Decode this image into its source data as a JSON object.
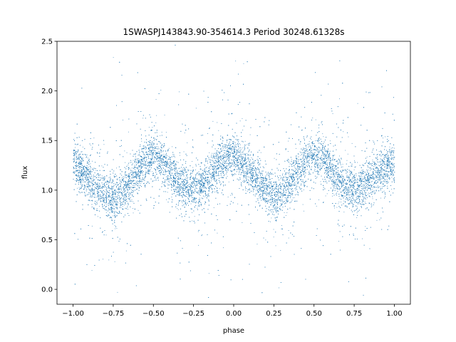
{
  "chart_data": {
    "type": "scatter",
    "title": "1SWASPJ143843.90-354614.3 Period 30248.61328s",
    "xlabel": "phase",
    "ylabel": "flux",
    "xlim": [
      -1.1,
      1.1
    ],
    "ylim": [
      -0.15,
      2.5
    ],
    "xticks": [
      -1.0,
      -0.75,
      -0.5,
      -0.25,
      0.0,
      0.25,
      0.5,
      0.75,
      1.0
    ],
    "xtick_labels": [
      "−1.00",
      "−0.75",
      "−0.50",
      "−0.25",
      "0.00",
      "0.25",
      "0.50",
      "0.75",
      "1.00"
    ],
    "yticks": [
      0.0,
      0.5,
      1.0,
      1.5,
      2.0,
      2.5
    ],
    "ytick_labels": [
      "0.0",
      "0.5",
      "1.0",
      "1.5",
      "2.0",
      "2.5"
    ],
    "grid": false,
    "point_color": "#1f77b4",
    "series": [
      {
        "x": [
          -1.0,
          -0.95,
          -0.9,
          -0.85,
          -0.8,
          -0.75,
          -0.7,
          -0.65,
          -0.6,
          -0.55,
          -0.5,
          -0.45,
          -0.4,
          -0.35,
          -0.3,
          -0.25,
          -0.2,
          -0.15,
          -0.1,
          -0.05,
          0.0,
          0.05,
          0.1,
          0.15,
          0.2,
          0.25,
          0.3,
          0.35,
          0.4,
          0.45,
          0.5,
          0.55,
          0.6,
          0.65,
          0.7,
          0.75,
          0.8,
          0.85,
          0.9,
          0.95,
          1.0
        ],
        "y": [
          1.28,
          1.2,
          1.12,
          1.02,
          0.95,
          0.92,
          0.97,
          1.08,
          1.2,
          1.3,
          1.33,
          1.3,
          1.2,
          1.1,
          1.02,
          1.0,
          1.05,
          1.15,
          1.25,
          1.32,
          1.33,
          1.28,
          1.18,
          1.08,
          1.0,
          0.95,
          0.98,
          1.08,
          1.2,
          1.3,
          1.35,
          1.3,
          1.2,
          1.1,
          1.02,
          1.0,
          1.05,
          1.12,
          1.2,
          1.25,
          1.28
        ]
      }
    ]
  }
}
